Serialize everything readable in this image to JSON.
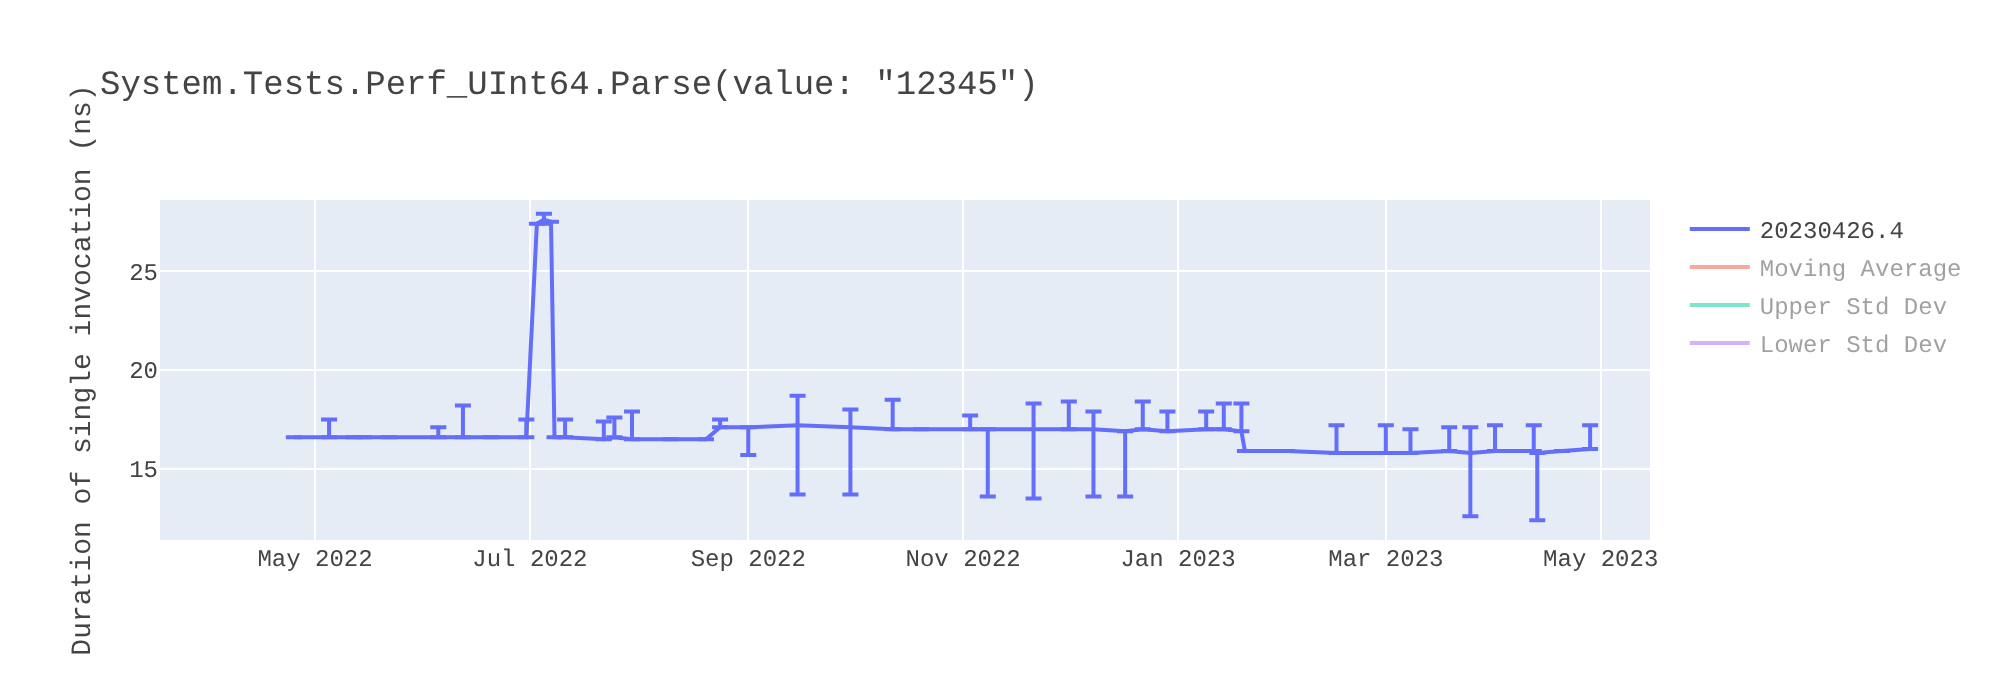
{
  "chart_data": {
    "type": "line",
    "title": "System.Tests.Perf_UInt64.Parse(value: \"12345\")",
    "ylabel": "Duration of single invocation (ns)",
    "x": [
      "2022-04-25",
      "2022-05-05",
      "2022-05-12",
      "2022-05-15",
      "2022-05-22",
      "2022-06-05",
      "2022-06-12",
      "2022-06-20",
      "2022-06-30",
      "2022-07-03",
      "2022-07-05",
      "2022-07-07",
      "2022-07-08",
      "2022-07-11",
      "2022-07-22",
      "2022-07-25",
      "2022-07-30",
      "2022-08-10",
      "2022-08-20",
      "2022-08-24",
      "2022-09-01",
      "2022-09-15",
      "2022-09-30",
      "2022-10-12",
      "2022-10-20",
      "2022-11-03",
      "2022-11-08",
      "2022-11-21",
      "2022-12-01",
      "2022-12-08",
      "2022-12-17",
      "2022-12-22",
      "2022-12-29",
      "2023-01-09",
      "2023-01-14",
      "2023-01-19",
      "2023-01-20",
      "2023-02-01",
      "2023-02-15",
      "2023-03-01",
      "2023-03-08",
      "2023-03-19",
      "2023-03-25",
      "2023-04-01",
      "2023-04-12",
      "2023-04-13",
      "2023-04-20",
      "2023-04-28"
    ],
    "series": [
      {
        "name": "20230426.4",
        "color": "#636efa",
        "values": [
          16.6,
          16.6,
          16.6,
          16.6,
          16.6,
          16.6,
          16.6,
          16.6,
          16.6,
          27.4,
          27.6,
          27.5,
          16.6,
          16.6,
          16.5,
          16.6,
          16.5,
          16.5,
          16.5,
          17.1,
          17.1,
          17.2,
          17.1,
          17.0,
          17.0,
          17.0,
          17.0,
          17.0,
          17.0,
          17.0,
          16.9,
          17.0,
          16.9,
          17.0,
          17.0,
          16.9,
          15.9,
          15.9,
          15.8,
          15.8,
          15.8,
          15.9,
          15.8,
          15.9,
          15.9,
          15.8,
          15.9,
          16.0
        ],
        "errors": [
          null,
          [
            16.6,
            17.5
          ],
          null,
          null,
          null,
          [
            16.6,
            17.1
          ],
          [
            16.6,
            18.2
          ],
          null,
          [
            16.6,
            17.5
          ],
          null,
          [
            27.4,
            27.9
          ],
          null,
          null,
          [
            16.6,
            17.5
          ],
          [
            16.5,
            17.4
          ],
          [
            16.6,
            17.6
          ],
          [
            16.5,
            17.9
          ],
          null,
          null,
          [
            17.1,
            17.5
          ],
          [
            15.7,
            17.1
          ],
          [
            13.7,
            18.7
          ],
          [
            13.7,
            18.0
          ],
          [
            17.0,
            18.5
          ],
          null,
          [
            17.0,
            17.7
          ],
          [
            13.6,
            17.0
          ],
          [
            13.5,
            18.3
          ],
          [
            17.0,
            18.4
          ],
          [
            13.6,
            17.9
          ],
          [
            13.6,
            16.9
          ],
          [
            17.0,
            18.4
          ],
          [
            16.9,
            17.9
          ],
          [
            17.0,
            17.9
          ],
          [
            17.0,
            18.3
          ],
          [
            16.9,
            18.3
          ],
          null,
          null,
          [
            15.8,
            17.2
          ],
          [
            15.8,
            17.2
          ],
          [
            15.8,
            17.0
          ],
          [
            15.9,
            17.1
          ],
          [
            12.6,
            17.1
          ],
          [
            15.9,
            17.2
          ],
          [
            15.9,
            17.2
          ],
          [
            12.4,
            15.8
          ],
          null,
          [
            16.0,
            17.2
          ]
        ]
      },
      {
        "name": "Moving Average",
        "color": "#ef553b",
        "values": [
          null,
          null,
          null,
          null,
          null,
          null,
          null,
          null,
          null,
          null,
          null,
          null,
          null,
          null,
          null,
          null,
          null,
          null,
          null,
          null,
          null,
          null,
          null,
          null,
          null,
          null,
          null,
          null,
          null,
          null,
          null,
          null,
          null,
          null,
          null,
          null,
          null,
          null,
          null,
          null,
          null,
          null,
          null,
          null,
          null,
          null,
          null,
          null
        ]
      },
      {
        "name": "Upper Std Dev",
        "color": "#00cc96",
        "values": [
          null,
          null,
          null,
          null,
          null,
          null,
          null,
          null,
          null,
          null,
          null,
          null,
          null,
          null,
          null,
          null,
          null,
          null,
          null,
          null,
          null,
          null,
          null,
          null,
          null,
          null,
          null,
          null,
          null,
          null,
          null,
          null,
          null,
          null,
          null,
          null,
          null,
          null,
          null,
          null,
          null,
          null,
          null,
          null,
          null,
          null,
          null,
          null
        ]
      },
      {
        "name": "Lower Std Dev",
        "color": "#ab63fa",
        "values": [
          null,
          null,
          null,
          null,
          null,
          null,
          null,
          null,
          null,
          null,
          null,
          null,
          null,
          null,
          null,
          null,
          null,
          null,
          null,
          null,
          null,
          null,
          null,
          null,
          null,
          null,
          null,
          null,
          null,
          null,
          null,
          null,
          null,
          null,
          null,
          null,
          null,
          null,
          null,
          null,
          null,
          null,
          null,
          null,
          null,
          null,
          null,
          null
        ]
      }
    ],
    "xlim": [
      "2022-03-18",
      "2023-05-15"
    ],
    "xticks": [
      {
        "value": "2022-05-01",
        "label": "May 2022"
      },
      {
        "value": "2022-07-01",
        "label": "Jul 2022"
      },
      {
        "value": "2022-09-01",
        "label": "Sep 2022"
      },
      {
        "value": "2022-11-01",
        "label": "Nov 2022"
      },
      {
        "value": "2023-01-01",
        "label": "Jan 2023"
      },
      {
        "value": "2023-03-01",
        "label": "Mar 2023"
      },
      {
        "value": "2023-05-01",
        "label": "May 2023"
      }
    ],
    "ylim": [
      11.4,
      28.6
    ],
    "yticks": [
      15,
      20,
      25
    ],
    "grid": true,
    "legend": "top right",
    "marker": "none",
    "line_style": "solid"
  }
}
